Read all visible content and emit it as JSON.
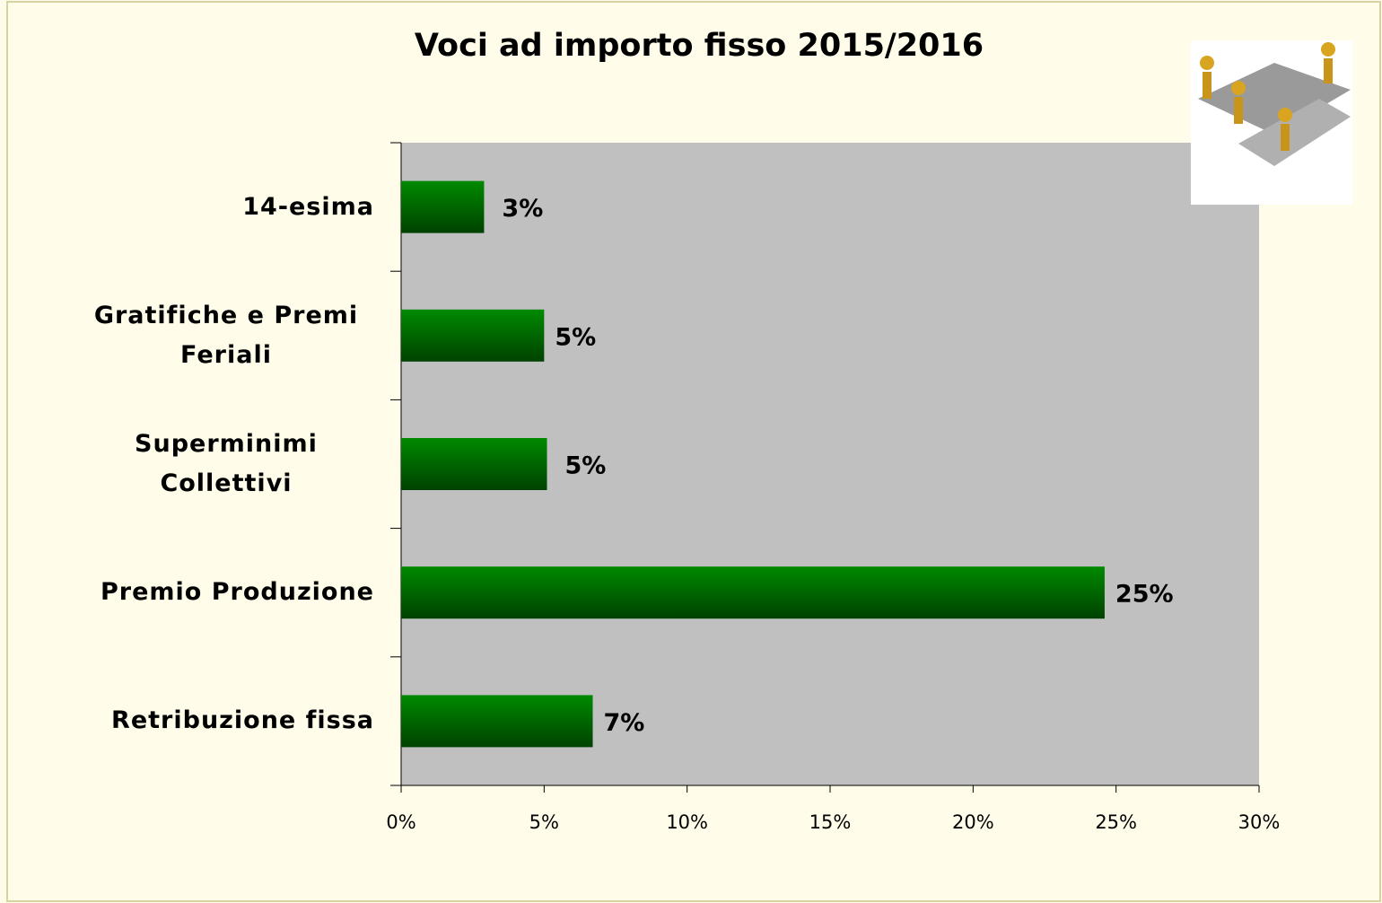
{
  "chart_data": {
    "type": "hbar",
    "title": "Voci ad importo fisso 2015/2016",
    "categories": [
      "14-esima",
      "Gratifiche e Premi Feriali",
      "Superminimi Collettivi",
      "Premio Produzione",
      "Retribuzione fissa"
    ],
    "values": [
      2.9,
      5,
      5.1,
      24.6,
      6.7
    ],
    "value_labels": [
      "3%",
      "5%",
      "5%",
      "25%",
      "7%"
    ],
    "color": "#007a00",
    "xlim": [
      0,
      30
    ],
    "xticks": [
      {
        "value": 0,
        "label": "0%"
      },
      {
        "value": 5,
        "label": "5%"
      },
      {
        "value": 10,
        "label": "10%"
      },
      {
        "value": 15,
        "label": "15%"
      },
      {
        "value": 20,
        "label": "20%"
      },
      {
        "value": 25,
        "label": "25%"
      },
      {
        "value": 30,
        "label": "30%"
      }
    ],
    "grid": false
  }
}
